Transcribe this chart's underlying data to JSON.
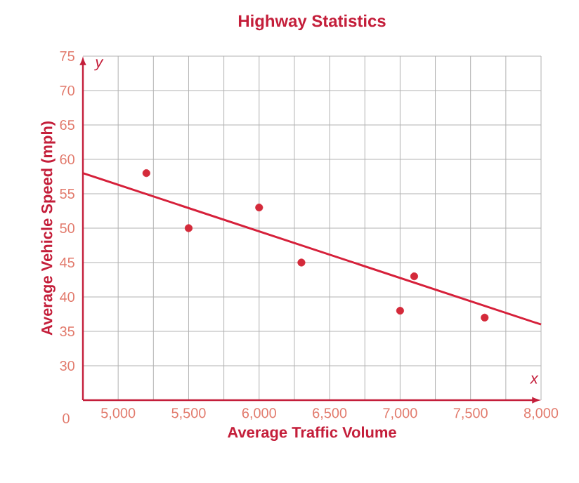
{
  "chart_data": {
    "type": "scatter",
    "title": "Highway Statistics",
    "xlabel": "Average Traffic Volume",
    "ylabel": "Average Vehicle Speed (mph)",
    "annotations": [
      "x",
      "y",
      "0"
    ],
    "xlim": [
      4750,
      8000
    ],
    "ylim": [
      25,
      75
    ],
    "xticks": [
      {
        "value": 5000,
        "label": "5,000"
      },
      {
        "value": 5500,
        "label": "5,500"
      },
      {
        "value": 6000,
        "label": "6,000"
      },
      {
        "value": 6500,
        "label": "6,500"
      },
      {
        "value": 7000,
        "label": "7,000"
      },
      {
        "value": 7500,
        "label": "7,500"
      },
      {
        "value": 8000,
        "label": "8,000"
      }
    ],
    "yticks": [
      30,
      35,
      40,
      45,
      50,
      55,
      60,
      65,
      70,
      75
    ],
    "grid": true,
    "series": [
      {
        "color": "#d42a3a",
        "marker": "circle",
        "x": [
          5200,
          5500,
          6000,
          6300,
          7000,
          7100,
          7600
        ],
        "values": [
          58,
          50,
          53,
          45,
          38,
          43,
          37
        ]
      },
      {
        "type": "line",
        "color": "#d6203a",
        "x": [
          4750,
          8000
        ],
        "values": [
          58,
          36
        ]
      }
    ]
  }
}
